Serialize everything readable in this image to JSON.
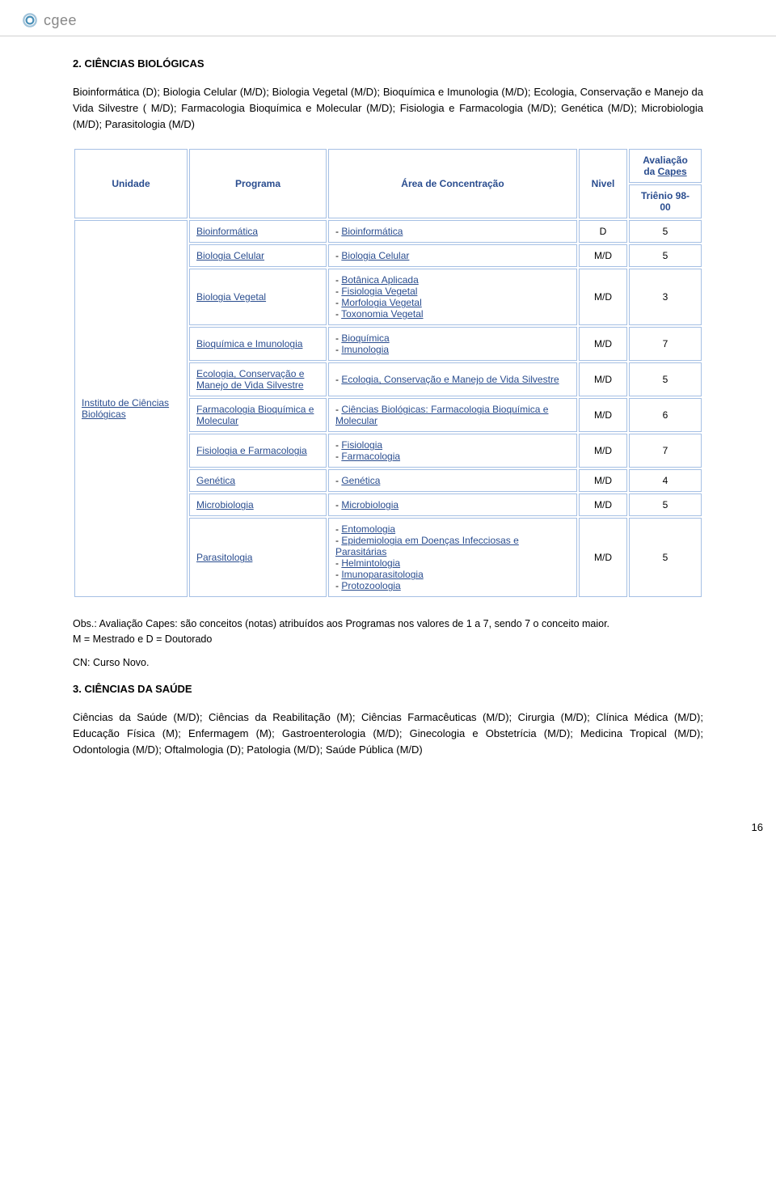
{
  "logo_text": "cgee",
  "section2": {
    "title": "2.  CIÊNCIAS BIOLÓGICAS",
    "intro": "Bioinformática (D); Biologia Celular (M/D); Biologia Vegetal (M/D); Bioquímica e Imunologia (M/D); Ecologia, Conservação e Manejo da Vida Silvestre ( M/D); Farmacologia Bioquímica e Molecular (M/D); Fisiologia e Farmacologia (M/D); Genética (M/D); Microbiologia (M/D); Parasitologia (M/D)"
  },
  "table": {
    "headers": {
      "unidade": "Unidade",
      "programa": "Programa",
      "area": "Área de Concentração",
      "nivel": "Nivel",
      "aval_top": "Avaliação da ",
      "aval_link": "Capes",
      "aval_sub": "Triênio 98-00"
    },
    "unidade": "Instituto de Ciências Biológicas",
    "rows": [
      {
        "programa": "Bioinformática",
        "areas": [
          "- Bioinformática"
        ],
        "nivel": "D",
        "aval": "5"
      },
      {
        "programa": "Biologia Celular",
        "areas": [
          "- Biologia Celular"
        ],
        "nivel": "M/D",
        "aval": "5"
      },
      {
        "programa": "Biologia Vegetal",
        "areas": [
          "- Botânica Aplicada",
          "- Fisiologia Vegetal",
          "- Morfologia Vegetal",
          "- Toxonomia Vegetal"
        ],
        "nivel": "M/D",
        "aval": "3"
      },
      {
        "programa": "Bioquímica e Imunologia",
        "areas": [
          "- Bioquímica",
          "- Imunologia"
        ],
        "nivel": "M/D",
        "aval": "7"
      },
      {
        "programa": "Ecologia, Conservação e Manejo de Vida Silvestre",
        "areas": [
          "- Ecologia, Conservação e Manejo de Vida Silvestre"
        ],
        "nivel": "M/D",
        "aval": "5"
      },
      {
        "programa": "Farmacologia Bioquímica e Molecular",
        "areas": [
          "- Ciências Biológicas: Farmacologia Bioquímica e Molecular"
        ],
        "nivel": "M/D",
        "aval": "6"
      },
      {
        "programa": "Fisiologia e Farmacologia",
        "areas": [
          "- Fisiologia",
          "- Farmacologia"
        ],
        "nivel": "M/D",
        "aval": "7"
      },
      {
        "programa": "Genética",
        "areas": [
          "- Genética"
        ],
        "nivel": "M/D",
        "aval": "4"
      },
      {
        "programa": "Microbiologia",
        "areas": [
          "- Microbiologia"
        ],
        "nivel": "M/D",
        "aval": "5"
      },
      {
        "programa": "Parasitologia",
        "areas": [
          "- Entomologia",
          "- Epidemiologia em Doenças Infecciosas e Parasitárias",
          "- Helmintologia",
          "- Imunoparasitologia",
          "- Protozoologia"
        ],
        "nivel": "M/D",
        "aval": "5"
      }
    ]
  },
  "notes": {
    "line1": "Obs.: Avaliação Capes: são conceitos (notas) atribuídos aos Programas nos valores de 1 a 7, sendo 7 o conceito maior.",
    "line2": "M = Mestrado e D = Doutorado",
    "cn": "CN: Curso Novo."
  },
  "section3": {
    "title": "3.  CIÊNCIAS DA SAÚDE",
    "intro": "Ciências da Saúde (M/D); Ciências da Reabilitação (M); Ciências Farmacêuticas (M/D); Cirurgia (M/D); Clínica Médica (M/D); Educação Física (M); Enfermagem (M); Gastroenterologia (M/D); Ginecologia e Obstetrícia (M/D); Medicina Tropical (M/D); Odontologia (M/D); Oftalmologia (D); Patologia (M/D); Saúde Pública (M/D)"
  },
  "page_number": "16",
  "colors": {
    "link": "#2a4d8f",
    "border": "#a6c0e4",
    "logo_grey": "#888888"
  }
}
